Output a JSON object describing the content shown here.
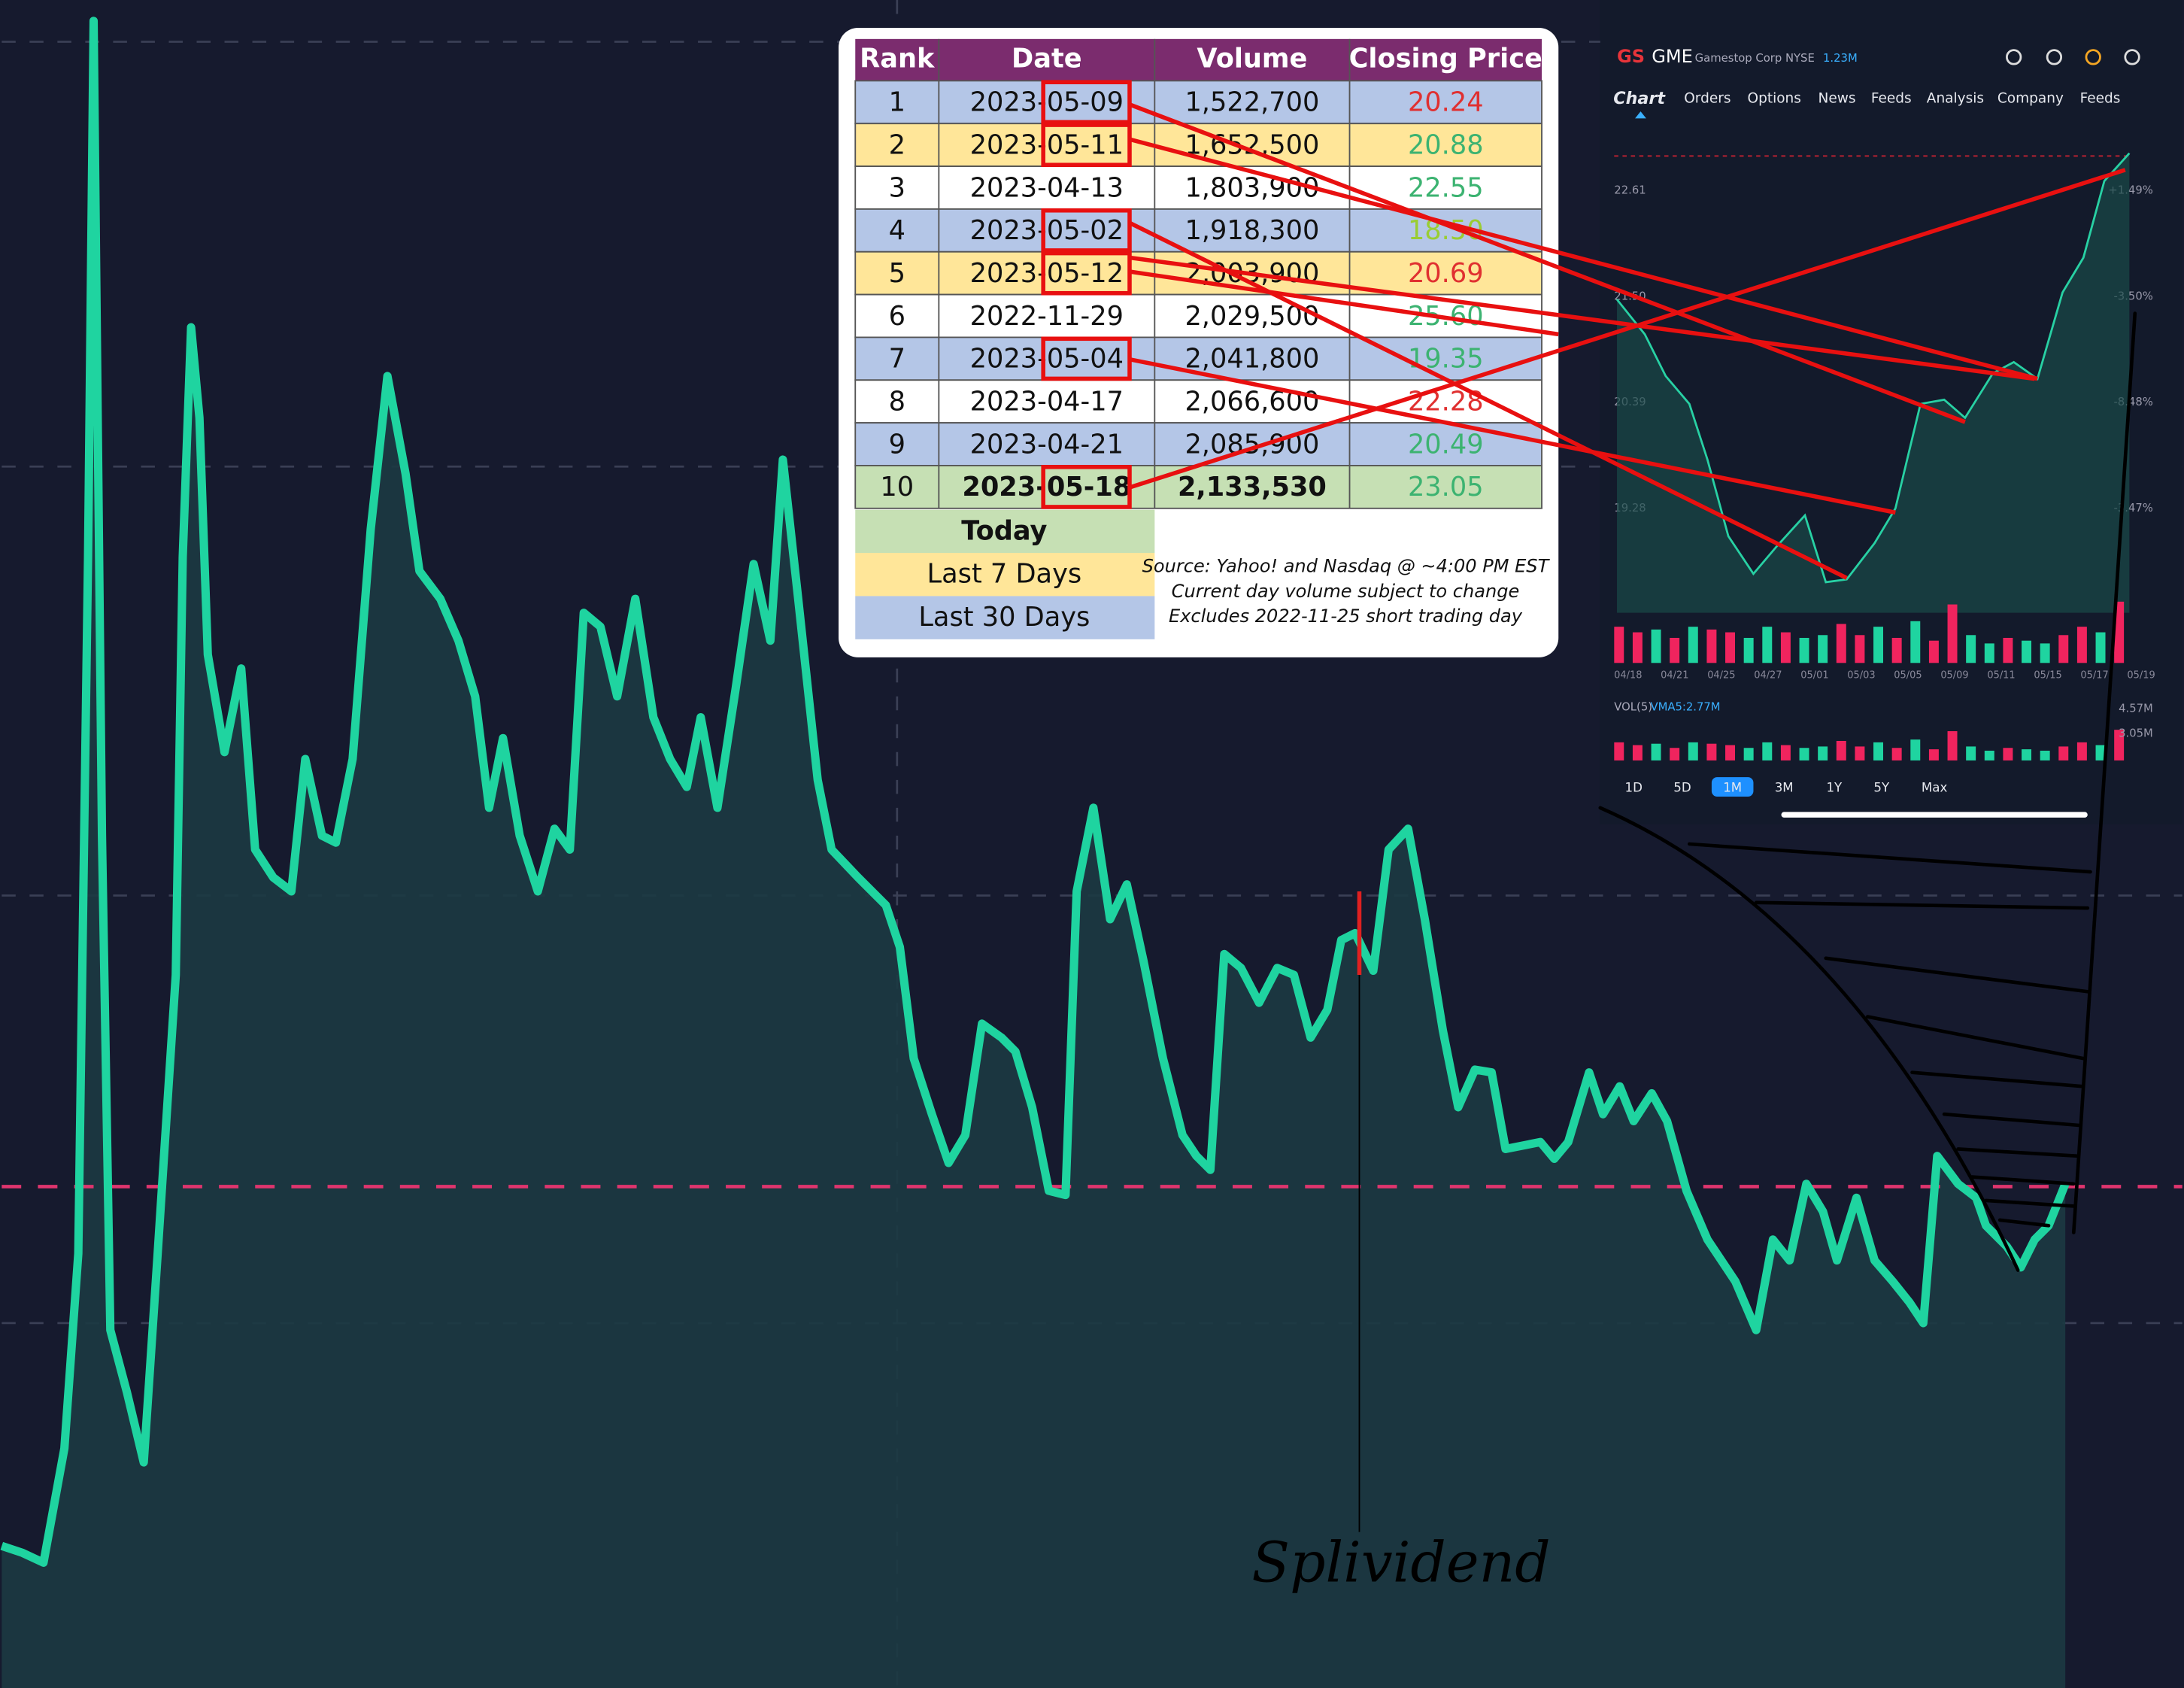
{
  "table": {
    "headers": [
      "Rank",
      "Date",
      "Volume",
      "Closing Price"
    ],
    "rows": [
      [
        "1",
        "2023-05-09",
        "1,522,700",
        "20.24"
      ],
      [
        "2",
        "2023-05-11",
        "1,652,500",
        "20.88"
      ],
      [
        "3",
        "2023-04-13",
        "1,803,900",
        "22.55"
      ],
      [
        "4",
        "2023-05-02",
        "1,918,300",
        "18.50"
      ],
      [
        "5",
        "2023-05-12",
        "2,003,900",
        "20.69"
      ],
      [
        "6",
        "2022-11-29",
        "2,029,500",
        "25.60"
      ],
      [
        "7",
        "2023-05-04",
        "2,041,800",
        "19.35"
      ],
      [
        "8",
        "2023-04-17",
        "2,066,600",
        "22.28"
      ],
      [
        "9",
        "2023-04-21",
        "2,085,900",
        "20.49"
      ],
      [
        "10",
        "2023-05-18",
        "2,133,530",
        "23.05"
      ]
    ]
  },
  "legend": [
    "Today",
    "Last 7 Days",
    "Last 30 Days"
  ],
  "source_notes": [
    "Source: Yahoo! and Nasdaq @ ~4:00 PM EST",
    "Current day volume subject to change",
    "Excludes 2022-11-25 short trading day"
  ],
  "app": {
    "logo": "GS",
    "ticker": "GME",
    "company": "Gamestop Corp NYSE",
    "followers": "1.23M",
    "tabs": [
      "Chart",
      "Orders",
      "Options",
      "News",
      "Feeds",
      "Analysis",
      "Company",
      "Feeds"
    ],
    "price_ticks": [
      "22.61",
      "21.50",
      "20.39",
      "19.28"
    ],
    "pct_ticks": [
      "+1.49%",
      "-3.50%",
      "-8.48%",
      "-3.47%"
    ],
    "dates": [
      "04/18",
      "04/21",
      "04/25",
      "04/27",
      "05/01",
      "05/03",
      "05/05",
      "05/09",
      "05/11",
      "05/15",
      "05/17",
      "05/19"
    ],
    "volume_label": "VOL(5)",
    "vma": "VMA5:2.77M",
    "volume_ticks": [
      "4.57M",
      "3.05M"
    ],
    "ranges": [
      "1D",
      "5D",
      "1M",
      "3M",
      "1Y",
      "5Y",
      "Max"
    ]
  },
  "annotation": "Splividend"
}
